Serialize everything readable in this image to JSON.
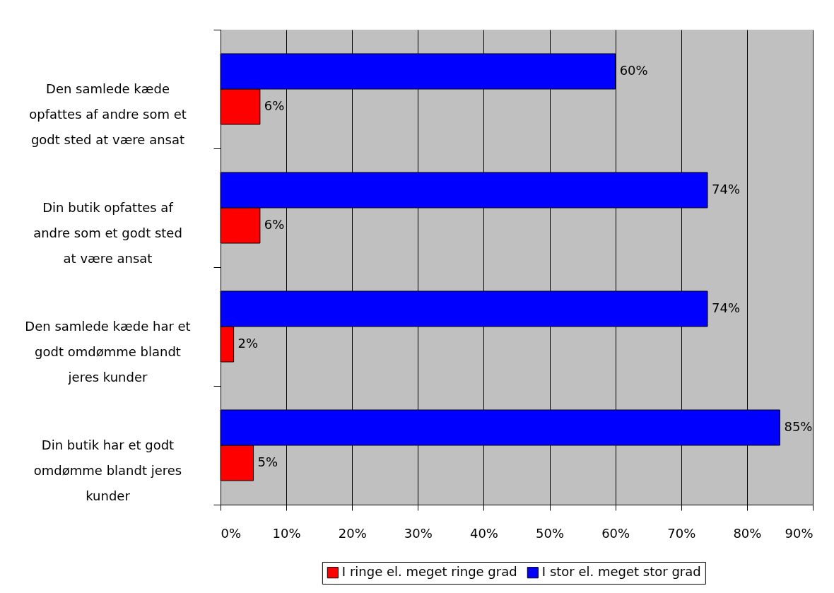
{
  "chart_data": {
    "type": "bar",
    "orientation": "horizontal",
    "categories": [
      "Den samlede kæde\nopfattes af andre som et\ngodt sted at være ansat",
      "Din butik opfattes af\nandre som et godt sted\nat være ansat",
      "Den samlede kæde har et\ngodt omdømme blandt\njeres kunder",
      "Din butik har et godt\nomdømme blandt jeres\nkunder"
    ],
    "series": [
      {
        "name": "I ringe el. meget ringe grad",
        "color": "#ff0000",
        "values": [
          6,
          6,
          2,
          5
        ],
        "value_labels": [
          "6%",
          "6%",
          "2%",
          "5%"
        ]
      },
      {
        "name": "I stor el. meget stor grad",
        "color": "#0000ff",
        "values": [
          60,
          74,
          74,
          85
        ],
        "value_labels": [
          "60%",
          "74%",
          "74%",
          "85%"
        ]
      }
    ],
    "xlim": [
      0,
      90
    ],
    "xticks": [
      {
        "value": 0,
        "label": "0%"
      },
      {
        "value": 10,
        "label": "10%"
      },
      {
        "value": 20,
        "label": "20%"
      },
      {
        "value": 30,
        "label": "30%"
      },
      {
        "value": 40,
        "label": "40%"
      },
      {
        "value": 50,
        "label": "50%"
      },
      {
        "value": 60,
        "label": "60%"
      },
      {
        "value": 70,
        "label": "70%"
      },
      {
        "value": 80,
        "label": "80%"
      },
      {
        "value": 90,
        "label": "90%"
      }
    ],
    "grid": "x",
    "legend": "bottom"
  }
}
